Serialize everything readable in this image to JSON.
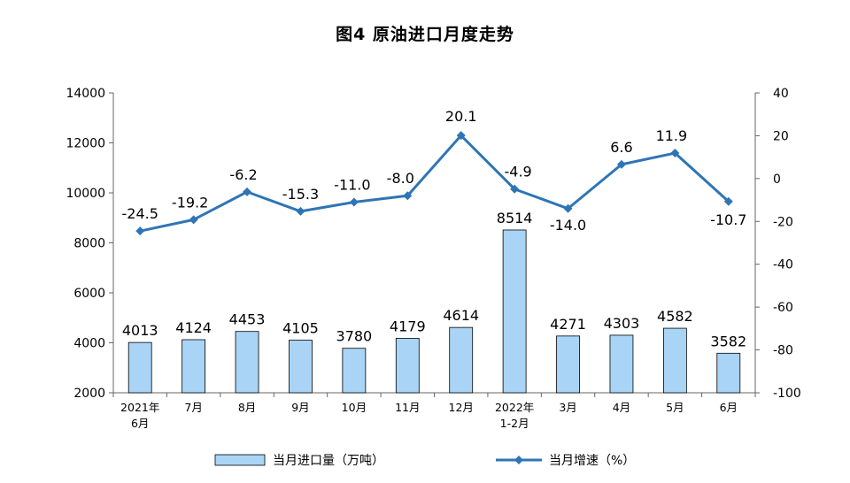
{
  "chart_data": {
    "type": "bar+line",
    "title": "图4  原油进口月度走势",
    "categories": [
      [
        "2021年",
        "6月"
      ],
      [
        "7月"
      ],
      [
        "8月"
      ],
      [
        "9月"
      ],
      [
        "10月"
      ],
      [
        "11月"
      ],
      [
        "12月"
      ],
      [
        "2022年",
        "1-2月"
      ],
      [
        "3月"
      ],
      [
        "4月"
      ],
      [
        "5月"
      ],
      [
        "6月"
      ]
    ],
    "series": [
      {
        "name": "当月进口量（万吨）",
        "type": "bar",
        "axis": "left",
        "values": [
          4013,
          4124,
          4453,
          4105,
          3780,
          4179,
          4614,
          8514,
          4271,
          4303,
          4582,
          3582
        ],
        "labels": [
          "4013",
          "4124",
          "4453",
          "4105",
          "3780",
          "4179",
          "4614",
          "8514",
          "4271",
          "4303",
          "4582",
          "3582"
        ]
      },
      {
        "name": "当月增速（%）",
        "type": "line",
        "axis": "right",
        "values": [
          -24.5,
          -19.2,
          -6.2,
          -15.3,
          -11.0,
          -8.0,
          20.1,
          -4.9,
          -14.0,
          6.6,
          11.9,
          -10.7
        ],
        "labels": [
          "-24.5",
          "-19.2",
          "-6.2",
          "-15.3",
          "-11.0",
          "-8.0",
          "20.1",
          "-4.9",
          "-14.0",
          "6.6",
          "11.9",
          "-10.7"
        ]
      }
    ],
    "y_left": {
      "ylim": [
        2000,
        14000
      ],
      "ticks": [
        "2000",
        "4000",
        "6000",
        "8000",
        "10000",
        "12000",
        "14000"
      ]
    },
    "y_right": {
      "ylim": [
        -100,
        40
      ],
      "ticks": [
        "-100",
        "-80",
        "-60",
        "-40",
        "-20",
        "0",
        "20",
        "40"
      ]
    },
    "legend_position": "bottom",
    "grid": false,
    "colors": {
      "bar_fill": "#a9d4f5",
      "bar_stroke": "#000000",
      "line": "#2e75b6"
    }
  }
}
